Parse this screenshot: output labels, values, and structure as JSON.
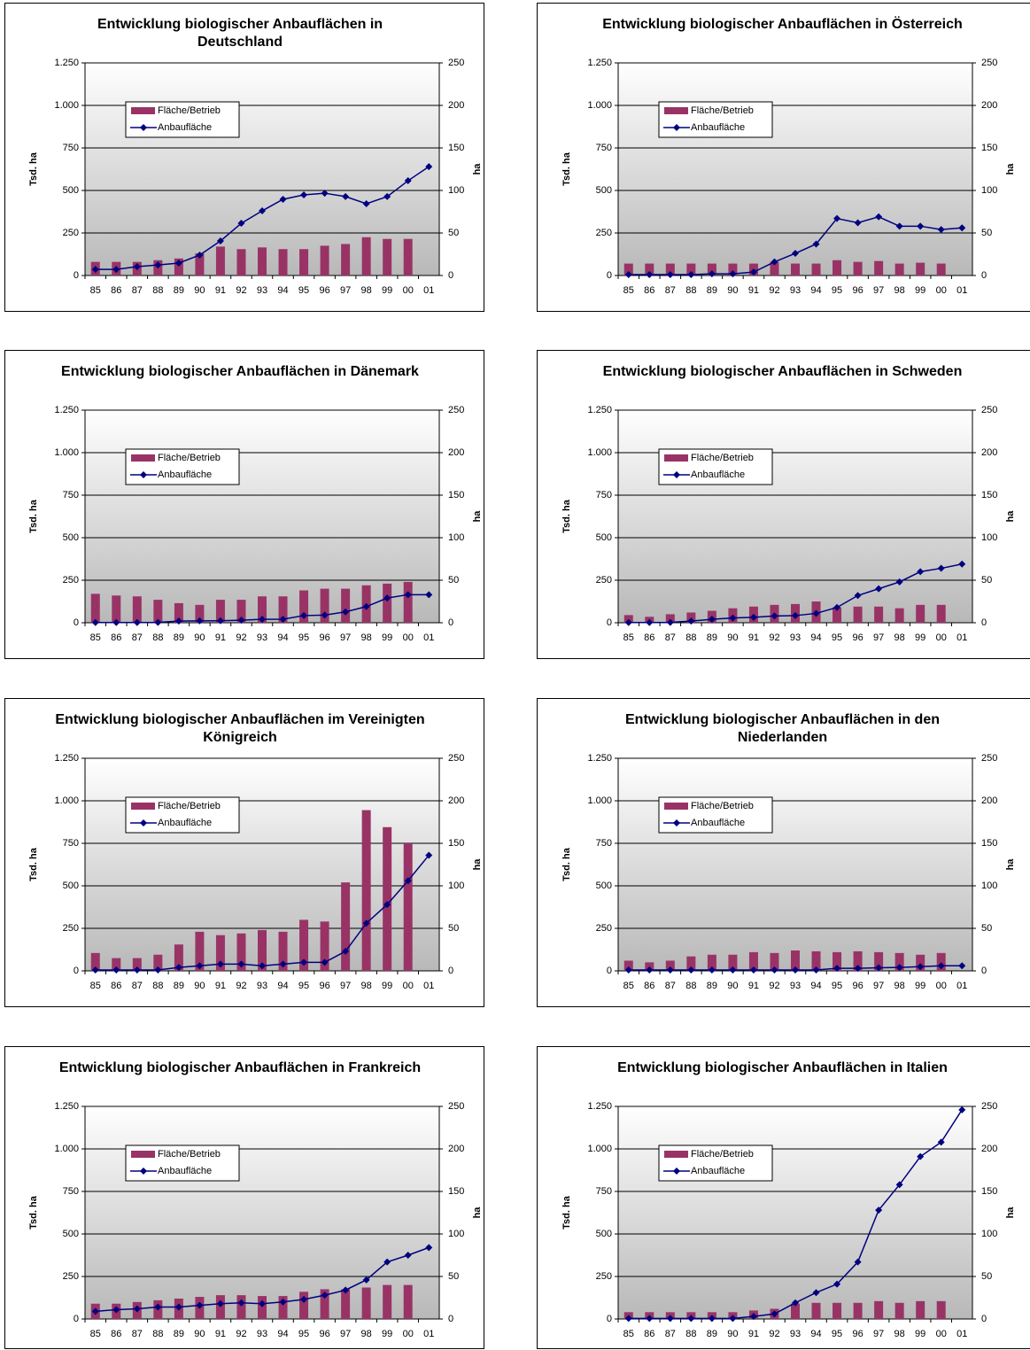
{
  "chart_data": [
    {
      "type": "combo",
      "title": "Entwicklung biologischer Anbauflächen in Deutschland",
      "ylabel": "Tsd. ha",
      "y2label": "ha",
      "categories": [
        "85",
        "86",
        "87",
        "88",
        "89",
        "90",
        "91",
        "92",
        "93",
        "94",
        "95",
        "96",
        "97",
        "98",
        "99",
        "00",
        "01"
      ],
      "ylim": [
        0,
        1250
      ],
      "yticks": [
        0,
        250,
        500,
        750,
        {
          "value": 1000,
          "label": "1.000"
        },
        {
          "value": 1250,
          "label": "1.250"
        }
      ],
      "y2lim": [
        0,
        250
      ],
      "y2ticks": [
        0,
        50,
        100,
        150,
        200,
        250
      ],
      "grid": true,
      "series": [
        {
          "name": "Fläche/Betrieb",
          "type": "bar",
          "axis": "y2",
          "color": "#993366",
          "values": [
            16,
            16,
            16,
            18,
            20,
            26,
            34,
            31,
            33,
            31,
            31,
            35,
            37,
            45,
            43,
            43,
            null
          ]
        },
        {
          "name": "Anbaufläche",
          "type": "line",
          "color": "#000080",
          "values": [
            36,
            36,
            52,
            62,
            73,
            120,
            203,
            307,
            380,
            448,
            474,
            484,
            464,
            422,
            464,
            557,
            640
          ]
        }
      ]
    },
    {
      "type": "combo",
      "title": "Entwicklung biologischer Anbauflächen in Österreich",
      "ylabel": "Tsd. ha",
      "y2label": "ha",
      "categories": [
        "85",
        "86",
        "87",
        "88",
        "89",
        "90",
        "91",
        "92",
        "93",
        "94",
        "95",
        "96",
        "97",
        "98",
        "99",
        "00",
        "01"
      ],
      "ylim": [
        0,
        1250
      ],
      "yticks": [
        0,
        250,
        500,
        750,
        {
          "value": 1000,
          "label": "1.000"
        },
        {
          "value": 1250,
          "label": "1.250"
        }
      ],
      "y2lim": [
        0,
        250
      ],
      "y2ticks": [
        0,
        50,
        100,
        150,
        200,
        250
      ],
      "grid": true,
      "series": [
        {
          "name": "Fläche/Betrieb",
          "type": "bar",
          "axis": "y2",
          "color": "#993366",
          "values": [
            14,
            14,
            14,
            14,
            14,
            14,
            14,
            16,
            14,
            14,
            18,
            16,
            17,
            14,
            15,
            14,
            null
          ]
        },
        {
          "name": "Anbaufläche",
          "type": "line",
          "color": "#000080",
          "values": [
            5,
            5,
            5,
            5,
            10,
            10,
            20,
            80,
            130,
            185,
            335,
            310,
            345,
            290,
            290,
            270,
            280
          ]
        }
      ]
    },
    {
      "type": "combo",
      "title": "Entwicklung biologischer Anbauflächen in Dänemark",
      "ylabel": "Tsd. ha",
      "y2label": "ha",
      "categories": [
        "85",
        "86",
        "87",
        "88",
        "89",
        "90",
        "91",
        "92",
        "93",
        "94",
        "95",
        "96",
        "97",
        "98",
        "99",
        "00",
        "01"
      ],
      "ylim": [
        0,
        1250
      ],
      "yticks": [
        0,
        250,
        500,
        750,
        {
          "value": 1000,
          "label": "1.000"
        },
        {
          "value": 1250,
          "label": "1.250"
        }
      ],
      "y2lim": [
        0,
        250
      ],
      "y2ticks": [
        0,
        50,
        100,
        150,
        200,
        250
      ],
      "grid": true,
      "series": [
        {
          "name": "Fläche/Betrieb",
          "type": "bar",
          "axis": "y2",
          "color": "#993366",
          "values": [
            34,
            32,
            31,
            27,
            23,
            21,
            27,
            27,
            31,
            31,
            38,
            40,
            40,
            44,
            46,
            48,
            null
          ]
        },
        {
          "name": "Anbaufläche",
          "type": "line",
          "color": "#000080",
          "values": [
            1,
            1,
            1,
            2,
            10,
            11,
            12,
            15,
            20,
            21,
            42,
            45,
            64,
            95,
            145,
            165,
            165
          ]
        }
      ]
    },
    {
      "type": "combo",
      "title": "Entwicklung biologischer Anbauflächen in Schweden",
      "ylabel": "Tsd. ha",
      "y2label": "ha",
      "categories": [
        "85",
        "86",
        "87",
        "88",
        "89",
        "90",
        "91",
        "92",
        "93",
        "94",
        "95",
        "96",
        "97",
        "98",
        "99",
        "00",
        "01"
      ],
      "ylim": [
        0,
        1250
      ],
      "yticks": [
        0,
        250,
        500,
        750,
        {
          "value": 1000,
          "label": "1.000"
        },
        {
          "value": 1250,
          "label": "1.250"
        }
      ],
      "y2lim": [
        0,
        250
      ],
      "y2ticks": [
        0,
        50,
        100,
        150,
        200,
        250
      ],
      "grid": true,
      "series": [
        {
          "name": "Fläche/Betrieb",
          "type": "bar",
          "axis": "y2",
          "color": "#993366",
          "values": [
            9,
            7,
            10,
            12,
            14,
            17,
            19,
            21,
            22,
            25,
            18,
            19,
            19,
            17,
            21,
            21,
            null
          ]
        },
        {
          "name": "Anbaufläche",
          "type": "line",
          "color": "#000080",
          "values": [
            1,
            1,
            2,
            10,
            20,
            28,
            32,
            40,
            42,
            55,
            90,
            160,
            200,
            240,
            300,
            320,
            345
          ]
        }
      ]
    },
    {
      "type": "combo",
      "title": "Entwicklung biologischer Anbauflächen im Vereinigten Königreich",
      "ylabel": "Tsd. ha",
      "y2label": "ha",
      "categories": [
        "85",
        "86",
        "87",
        "88",
        "89",
        "90",
        "91",
        "92",
        "93",
        "94",
        "95",
        "96",
        "97",
        "98",
        "99",
        "00",
        "01"
      ],
      "ylim": [
        0,
        1250
      ],
      "yticks": [
        0,
        250,
        500,
        750,
        {
          "value": 1000,
          "label": "1.000"
        },
        {
          "value": 1250,
          "label": "1.250"
        }
      ],
      "y2lim": [
        0,
        250
      ],
      "y2ticks": [
        0,
        50,
        100,
        150,
        200,
        250
      ],
      "grid": true,
      "series": [
        {
          "name": "Fläche/Betrieb",
          "type": "bar",
          "axis": "y2",
          "color": "#993366",
          "values": [
            21,
            15,
            15,
            19,
            31,
            46,
            42,
            44,
            48,
            46,
            60,
            58,
            104,
            189,
            169,
            150,
            null
          ]
        },
        {
          "name": "Anbaufläche",
          "type": "line",
          "color": "#000080",
          "values": [
            5,
            5,
            5,
            5,
            20,
            30,
            40,
            40,
            30,
            40,
            50,
            50,
            115,
            280,
            390,
            530,
            680
          ]
        }
      ]
    },
    {
      "type": "combo",
      "title": "Entwicklung biologischer Anbauflächen in den Niederlanden",
      "ylabel": "Tsd. ha",
      "y2label": "ha",
      "categories": [
        "85",
        "86",
        "87",
        "88",
        "89",
        "90",
        "91",
        "92",
        "93",
        "94",
        "95",
        "96",
        "97",
        "98",
        "99",
        "00",
        "01"
      ],
      "ylim": [
        0,
        1250
      ],
      "yticks": [
        0,
        250,
        500,
        750,
        {
          "value": 1000,
          "label": "1.000"
        },
        {
          "value": 1250,
          "label": "1.250"
        }
      ],
      "y2lim": [
        0,
        250
      ],
      "y2ticks": [
        0,
        50,
        100,
        150,
        200,
        250
      ],
      "grid": true,
      "series": [
        {
          "name": "Fläche/Betrieb",
          "type": "bar",
          "axis": "y2",
          "color": "#993366",
          "values": [
            12,
            10,
            12,
            17,
            19,
            19,
            22,
            21,
            24,
            23,
            22,
            23,
            22,
            21,
            19,
            21,
            null
          ]
        },
        {
          "name": "Anbaufläche",
          "type": "line",
          "color": "#000080",
          "values": [
            5,
            5,
            5,
            5,
            5,
            5,
            5,
            5,
            5,
            5,
            15,
            15,
            18,
            20,
            25,
            30,
            30
          ]
        }
      ]
    },
    {
      "type": "combo",
      "title": "Entwicklung biologischer Anbauflächen in Frankreich",
      "ylabel": "Tsd. ha",
      "y2label": "ha",
      "categories": [
        "85",
        "86",
        "87",
        "88",
        "89",
        "90",
        "91",
        "92",
        "93",
        "94",
        "95",
        "96",
        "97",
        "98",
        "99",
        "00",
        "01"
      ],
      "ylim": [
        0,
        1250
      ],
      "yticks": [
        0,
        250,
        500,
        750,
        {
          "value": 1000,
          "label": "1.000"
        },
        {
          "value": 1250,
          "label": "1.250"
        }
      ],
      "y2lim": [
        0,
        250
      ],
      "y2ticks": [
        0,
        50,
        100,
        150,
        200,
        250
      ],
      "grid": true,
      "series": [
        {
          "name": "Fläche/Betrieb",
          "type": "bar",
          "axis": "y2",
          "color": "#993366",
          "values": [
            18,
            18,
            20,
            22,
            24,
            26,
            28,
            28,
            27,
            27,
            32,
            35,
            35,
            37,
            40,
            40,
            null
          ]
        },
        {
          "name": "Anbaufläche",
          "type": "line",
          "color": "#000080",
          "values": [
            45,
            55,
            60,
            70,
            70,
            80,
            90,
            95,
            90,
            100,
            115,
            140,
            170,
            230,
            335,
            375,
            420
          ]
        }
      ]
    },
    {
      "type": "combo",
      "title": "Entwicklung biologischer Anbauflächen in Italien",
      "ylabel": "Tsd. ha",
      "y2label": "ha",
      "categories": [
        "85",
        "86",
        "87",
        "88",
        "89",
        "90",
        "91",
        "92",
        "93",
        "94",
        "95",
        "96",
        "97",
        "98",
        "99",
        "00",
        "01"
      ],
      "ylim": [
        0,
        1250
      ],
      "yticks": [
        0,
        250,
        500,
        750,
        {
          "value": 1000,
          "label": "1.000"
        },
        {
          "value": 1250,
          "label": "1.250"
        }
      ],
      "y2lim": [
        0,
        250
      ],
      "y2ticks": [
        0,
        50,
        100,
        150,
        200,
        250
      ],
      "grid": true,
      "series": [
        {
          "name": "Fläche/Betrieb",
          "type": "bar",
          "axis": "y2",
          "color": "#993366",
          "values": [
            8,
            8,
            8,
            8,
            8,
            8,
            10,
            12,
            18,
            19,
            19,
            19,
            21,
            19,
            21,
            21,
            null
          ]
        },
        {
          "name": "Anbaufläche",
          "type": "line",
          "color": "#000080",
          "values": [
            3,
            3,
            3,
            3,
            3,
            3,
            15,
            30,
            95,
            155,
            205,
            335,
            640,
            790,
            955,
            1040,
            1230
          ]
        }
      ]
    }
  ]
}
